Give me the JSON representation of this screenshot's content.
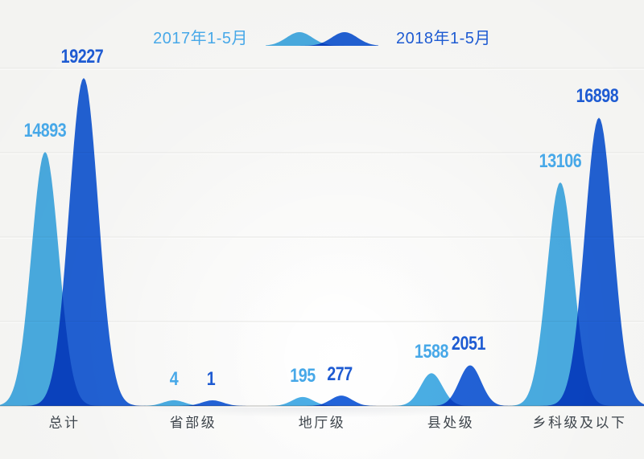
{
  "chart_data": {
    "type": "area",
    "subtype": "smoothed-hill-comparison",
    "categories": [
      "总计",
      "省部级",
      "地厅级",
      "县处级",
      "乡科级及以下"
    ],
    "series": [
      {
        "name": "2017年1-5月",
        "values": [
          14893,
          4,
          195,
          1588,
          13106
        ]
      },
      {
        "name": "2018年1-5月",
        "values": [
          19227,
          1,
          277,
          2051,
          16898
        ]
      }
    ],
    "ylim": [
      0,
      20000
    ],
    "grid_step": 5000,
    "grid": "on",
    "legend_position": "top-center",
    "xlabel": "",
    "ylabel": ""
  },
  "colors": {
    "series1_fill": "#4BAFE7",
    "series2_fill": "#2263DA",
    "series1_text": "#47A8E8",
    "series2_text": "#1E5BD2",
    "grid_line": "#e4e4e2",
    "grid_highlight": "#ffffff",
    "baseline": "#cfcfcd",
    "category_text": "#3e454c"
  }
}
